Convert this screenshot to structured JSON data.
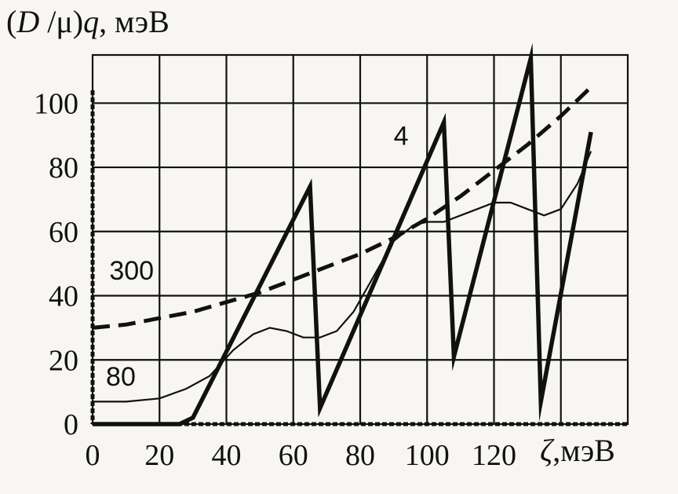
{
  "figure": {
    "ylabel": {
      "lead": "(",
      "symbol_d": "D",
      "slash_mu": " /μ)",
      "symbol_q": "q",
      "unit": ", мэВ"
    },
    "xlabel": {
      "symbol": "ζ",
      "unit": ",мэВ"
    }
  },
  "chart_data": {
    "type": "line",
    "xlim": [
      0,
      160
    ],
    "ylim": [
      0,
      115
    ],
    "x_ticks": [
      0,
      20,
      40,
      60,
      80,
      100,
      120
    ],
    "y_ticks": [
      0,
      20,
      40,
      60,
      80,
      100
    ],
    "x_tick_labels": [
      "0",
      "20",
      "40",
      "60",
      "80",
      "100",
      "120"
    ],
    "y_tick_labels": [
      "0",
      "20",
      "40",
      "60",
      "80",
      "100"
    ],
    "grid": true,
    "colors": {
      "line": "#111111",
      "grid": "#111111",
      "background": "#f7f6f2"
    },
    "series": [
      {
        "name": "4",
        "style": "thick",
        "x": [
          0,
          26,
          30,
          65,
          68,
          105,
          108,
          131,
          134,
          149
        ],
        "y": [
          0,
          0,
          2,
          74,
          5,
          94,
          21,
          114,
          7,
          91
        ]
      },
      {
        "name": "80",
        "style": "thin",
        "x": [
          0,
          10,
          20,
          28,
          35,
          42,
          48,
          53,
          58,
          63,
          68,
          73,
          78,
          84,
          90,
          96,
          100,
          105,
          110,
          115,
          120,
          125,
          130,
          135,
          140,
          145,
          149
        ],
        "y": [
          7,
          7,
          8,
          11,
          15,
          23,
          28,
          30,
          29,
          27,
          27,
          29,
          35,
          46,
          57,
          62,
          63,
          63,
          65,
          67,
          69,
          69,
          67,
          65,
          67,
          75,
          85
        ]
      },
      {
        "name": "300",
        "style": "dashed",
        "x": [
          0,
          10,
          20,
          30,
          40,
          50,
          60,
          70,
          80,
          90,
          100,
          110,
          120,
          130,
          140,
          149
        ],
        "y": [
          30,
          31,
          33,
          35,
          38,
          41,
          45,
          49,
          53,
          58,
          64,
          71,
          79,
          87,
          96,
          105
        ]
      }
    ],
    "annotations": [
      {
        "text": "4",
        "series": "4",
        "x": 90,
        "y": 87
      },
      {
        "text": "80",
        "series": "80",
        "x": 4,
        "y": 12
      },
      {
        "text": "300",
        "series": "300",
        "x": 5,
        "y": 45
      }
    ]
  }
}
